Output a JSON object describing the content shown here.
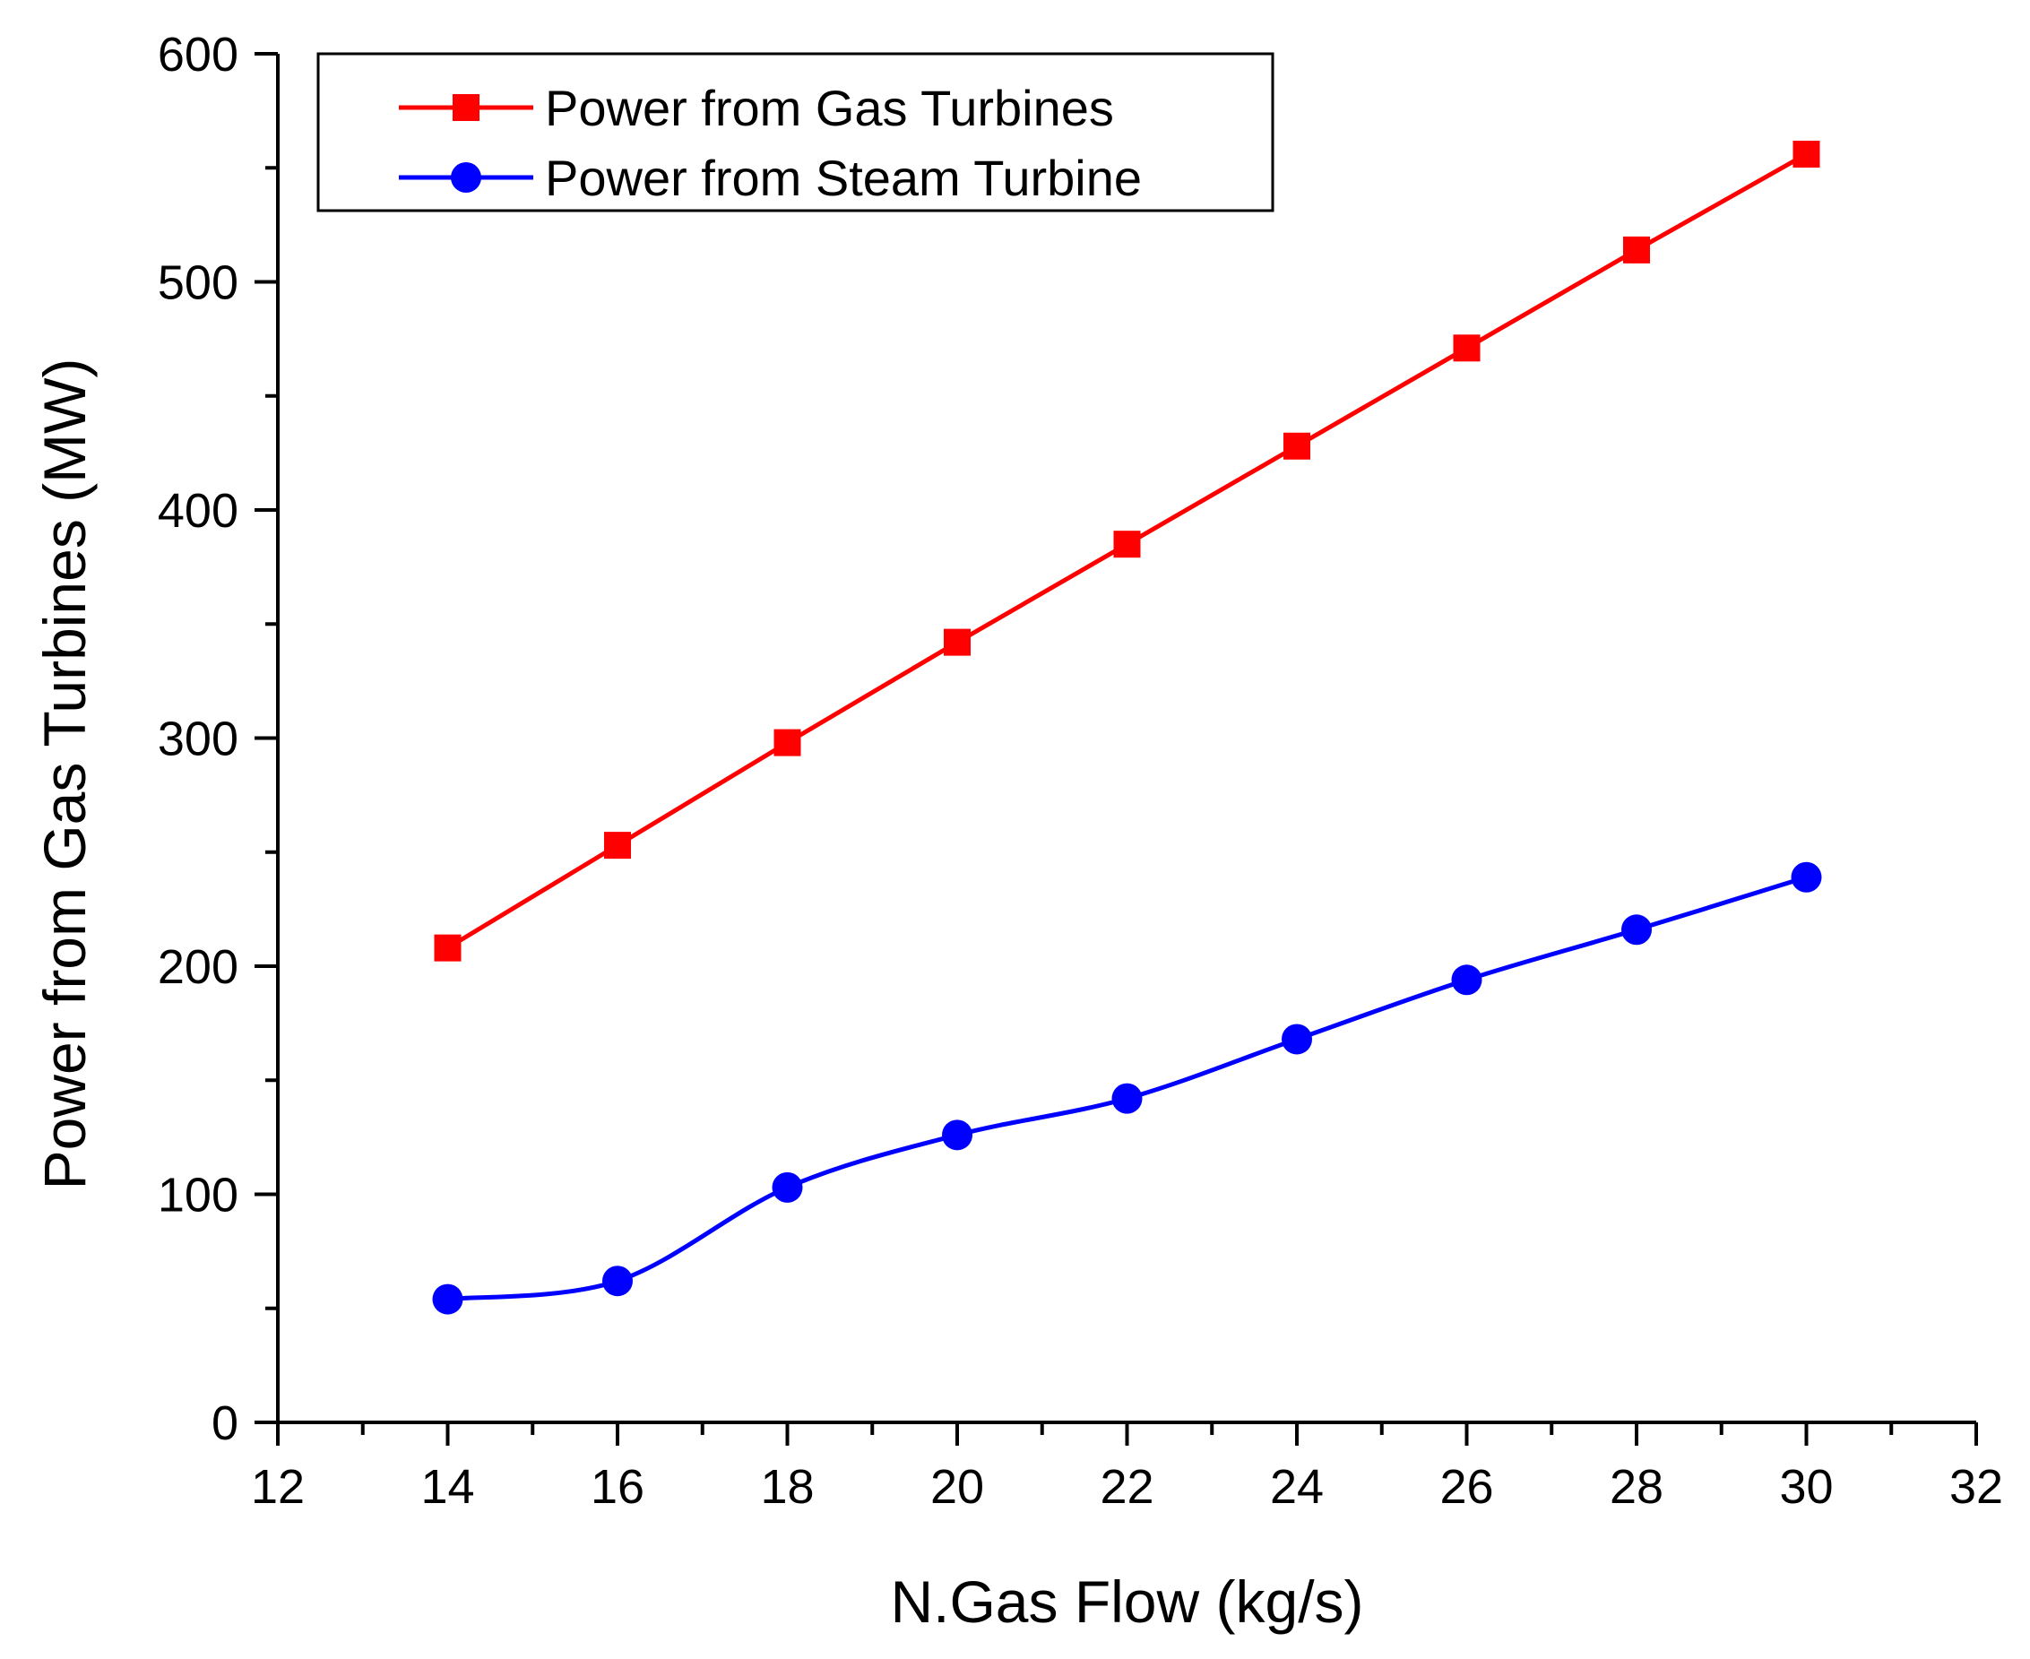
{
  "chart_data": {
    "type": "line",
    "title": "",
    "xlabel": "N.Gas Flow (kg/s)",
    "ylabel": "Power from Gas Turbines (MW)",
    "xlim": [
      12,
      32
    ],
    "ylim": [
      0,
      600
    ],
    "x_ticks": [
      12,
      14,
      16,
      18,
      20,
      22,
      24,
      26,
      28,
      30,
      32
    ],
    "y_ticks": [
      0,
      100,
      200,
      300,
      400,
      500,
      600
    ],
    "x_tick_labels": [
      "12",
      "14",
      "16",
      "18",
      "20",
      "22",
      "24",
      "26",
      "28",
      "30",
      "32"
    ],
    "y_tick_labels": [
      "0",
      "100",
      "200",
      "300",
      "400",
      "500",
      "600"
    ],
    "grid": false,
    "legend_position": "top-left",
    "x": [
      14,
      16,
      18,
      20,
      22,
      24,
      26,
      28,
      30
    ],
    "series": [
      {
        "name": "Power from Gas Turbines",
        "color": "#ff0000",
        "marker": "square",
        "smooth": false,
        "values": [
          208,
          253,
          298,
          342,
          385,
          428,
          471,
          514,
          556
        ]
      },
      {
        "name": "Power from Steam Turbine",
        "color": "#0000ff",
        "marker": "circle",
        "smooth": true,
        "values": [
          54,
          62,
          103,
          126,
          142,
          168,
          194,
          216,
          239
        ]
      }
    ]
  }
}
